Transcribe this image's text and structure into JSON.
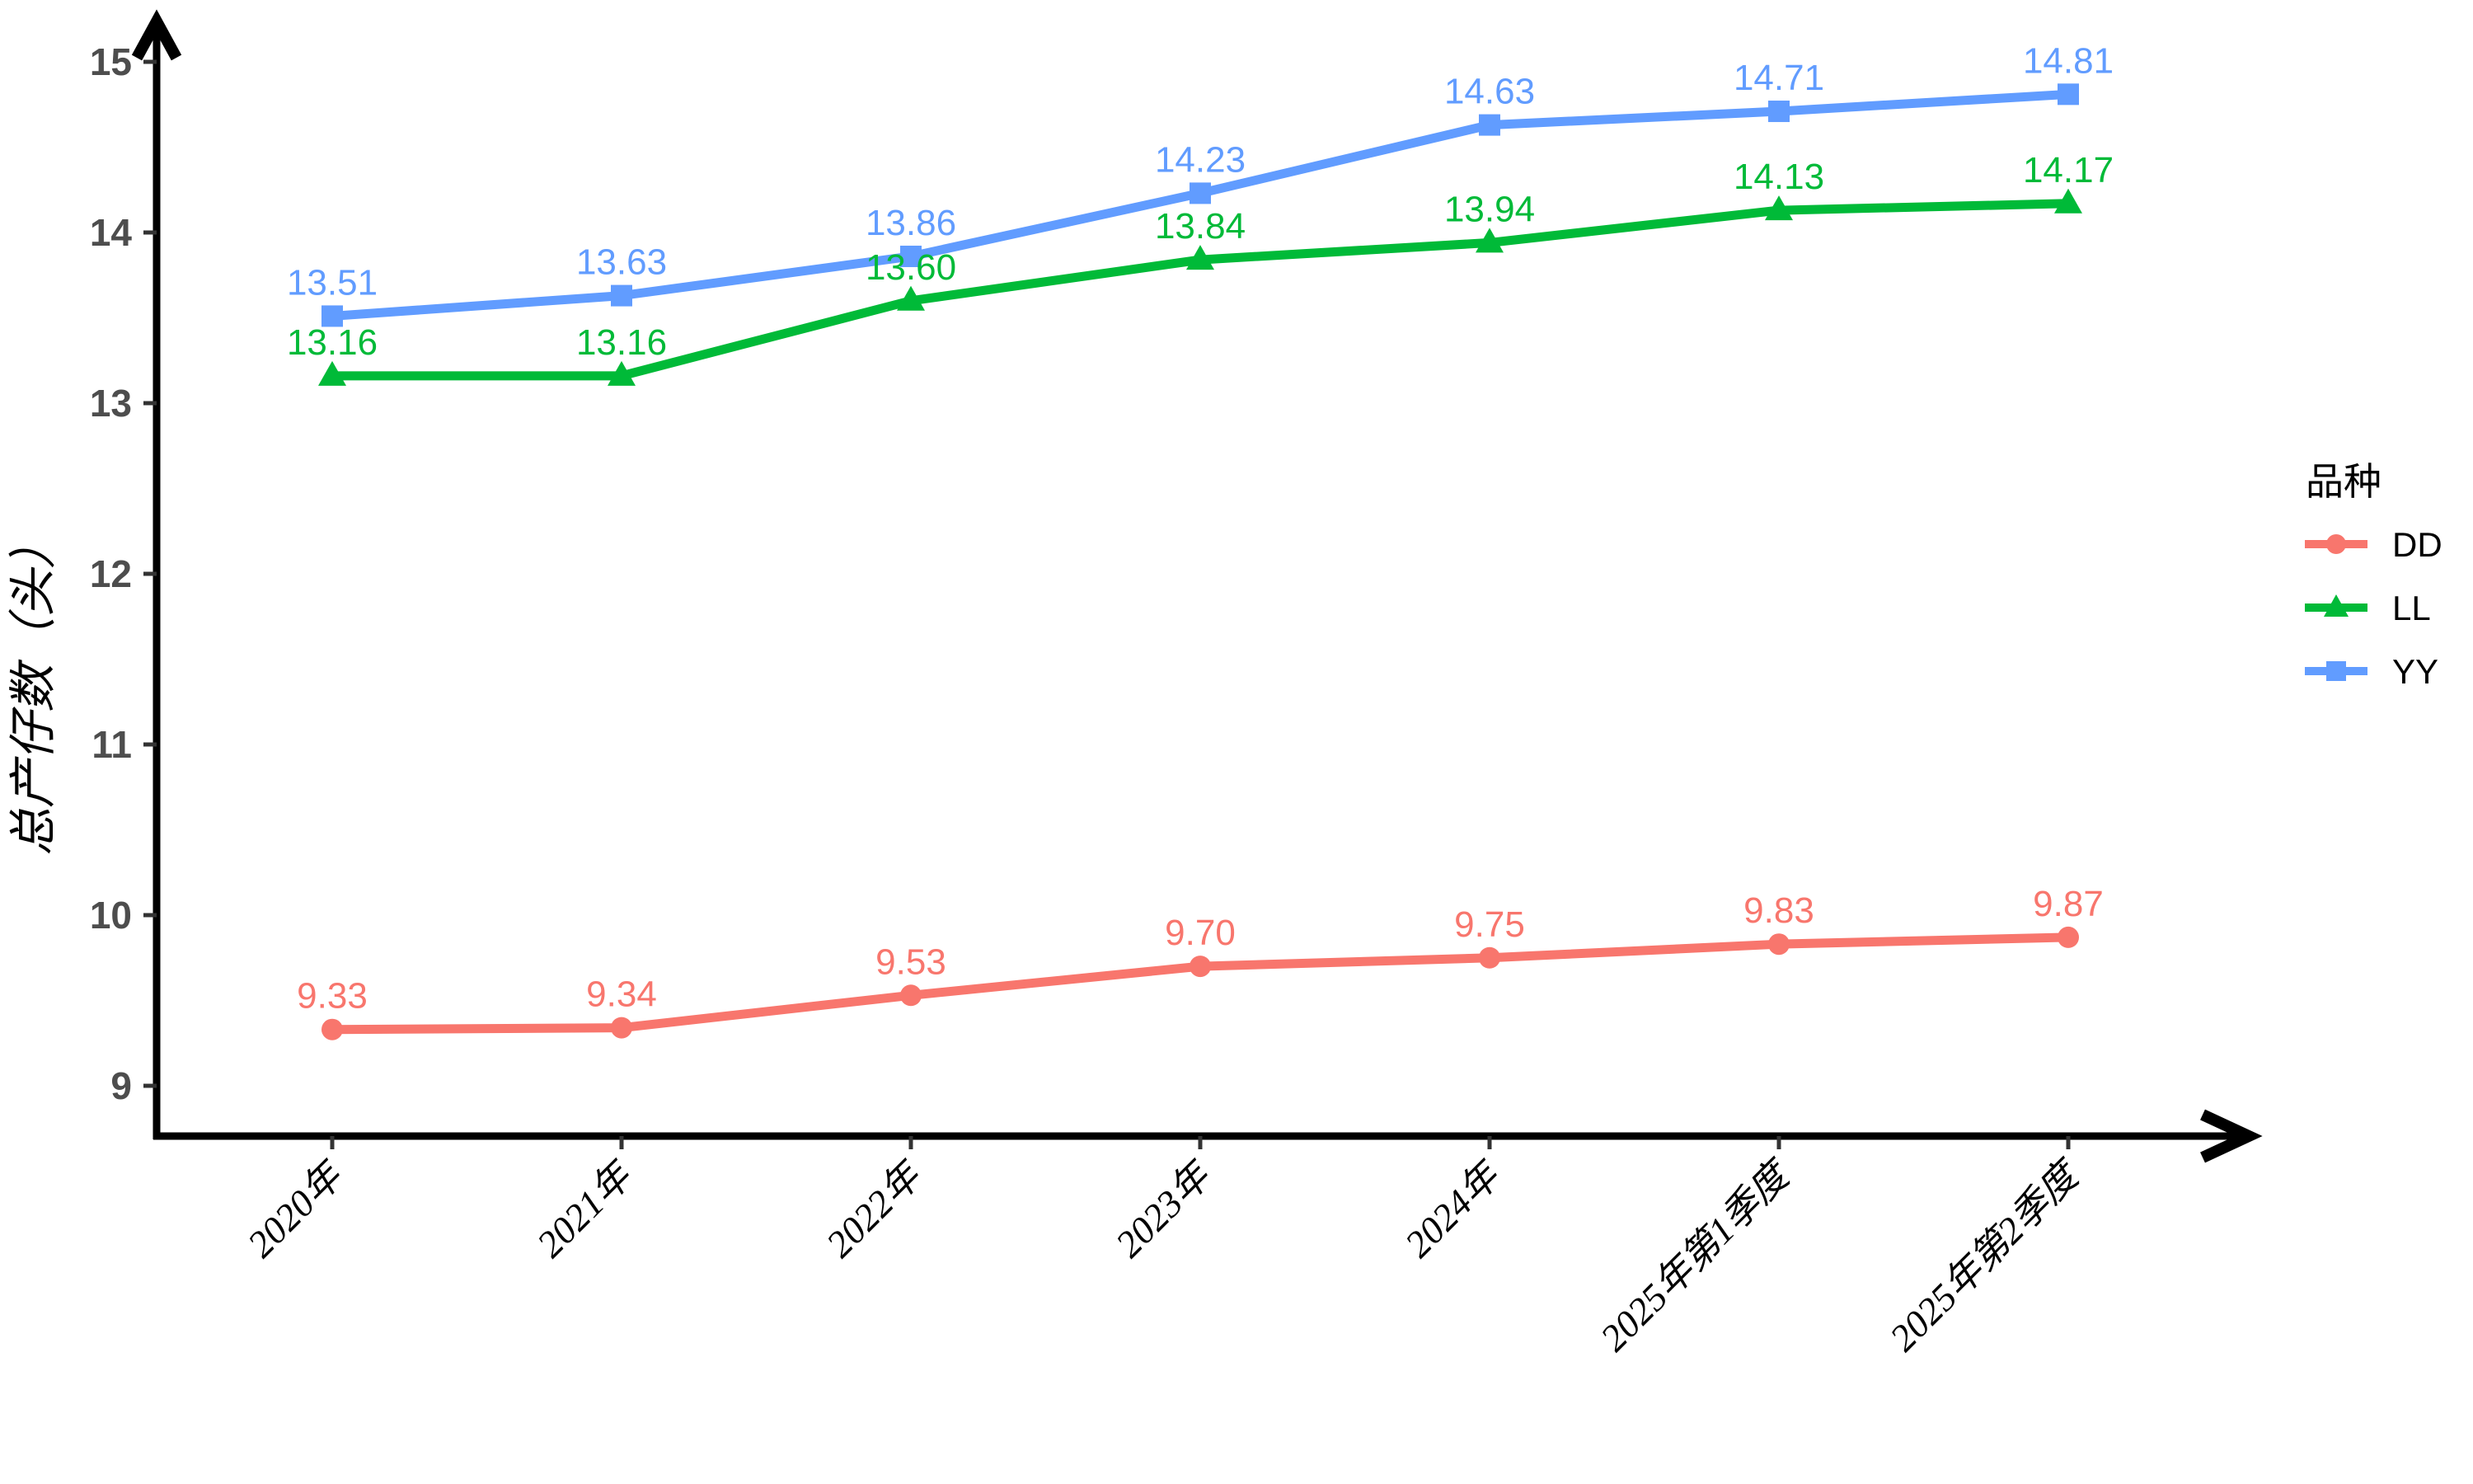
{
  "chart_data": {
    "type": "line",
    "title": "",
    "xlabel": "",
    "ylabel": "总产仔数（头）",
    "categories": [
      "2020年",
      "2021年",
      "2022年",
      "2023年",
      "2024年",
      "2025年第1季度",
      "2025年第2季度"
    ],
    "series": [
      {
        "name": "DD",
        "color": "#F8766D",
        "marker": "circle",
        "values": [
          9.33,
          9.34,
          9.53,
          9.7,
          9.75,
          9.83,
          9.87
        ]
      },
      {
        "name": "LL",
        "color": "#00BA38",
        "marker": "triangle",
        "values": [
          13.16,
          13.16,
          13.6,
          13.84,
          13.94,
          14.13,
          14.17
        ]
      },
      {
        "name": "YY",
        "color": "#619CFF",
        "marker": "square",
        "values": [
          13.51,
          13.63,
          13.86,
          14.23,
          14.63,
          14.71,
          14.81
        ]
      }
    ],
    "y_ticks": [
      9,
      10,
      11,
      12,
      13,
      14,
      15
    ],
    "ylim": [
      9,
      15.3
    ],
    "grid": false,
    "legend_title": "品种",
    "legend_position": "right",
    "point_labels_decimals": 2
  },
  "colors": {
    "axis_line": "#000000",
    "tick_mark": "#333333",
    "y_tick_text": "#4d4d4d",
    "x_tick_text": "#000000"
  }
}
